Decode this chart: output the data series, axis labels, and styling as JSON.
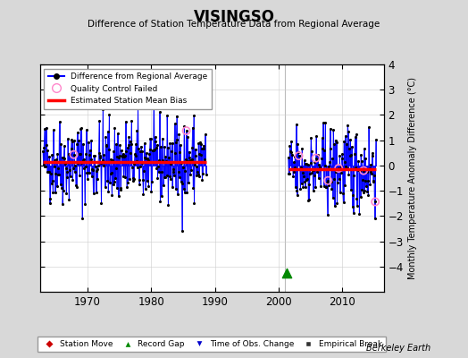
{
  "title": "VISINGSO",
  "subtitle": "Difference of Station Temperature Data from Regional Average",
  "ylabel": "Monthly Temperature Anomaly Difference (°C)",
  "credit": "Berkeley Earth",
  "ylim": [
    -5,
    4
  ],
  "yticks": [
    -4,
    -3,
    -2,
    -1,
    0,
    1,
    2,
    3,
    4
  ],
  "xlim": [
    1962.5,
    2016.5
  ],
  "xticks": [
    1970,
    1980,
    1990,
    2000,
    2010
  ],
  "segment1_start": 1963.0,
  "segment1_end": 1988.6,
  "segment2_start": 2001.5,
  "segment2_end": 2015.3,
  "bias1": 0.15,
  "bias2": -0.15,
  "vline_x": 2001.0,
  "background_color": "#d8d8d8",
  "plot_bg_color": "#ffffff",
  "line_color": "#0000ff",
  "fill_color": "#aaaaff",
  "dot_color": "#000000",
  "bias_color": "#ff0000",
  "qc_color": "#ff88cc",
  "gap_marker_color": "#008800",
  "gap_marker_x": 2001.2,
  "gap_marker_y": -4.25,
  "vline_color": "#bbbbbb",
  "legend1_labels": [
    "Difference from Regional Average",
    "Quality Control Failed",
    "Estimated Station Mean Bias"
  ],
  "legend2_labels": [
    "Station Move",
    "Record Gap",
    "Time of Obs. Change",
    "Empirical Break"
  ],
  "seed": 42,
  "qc_count1": 2,
  "qc_count2": 6
}
